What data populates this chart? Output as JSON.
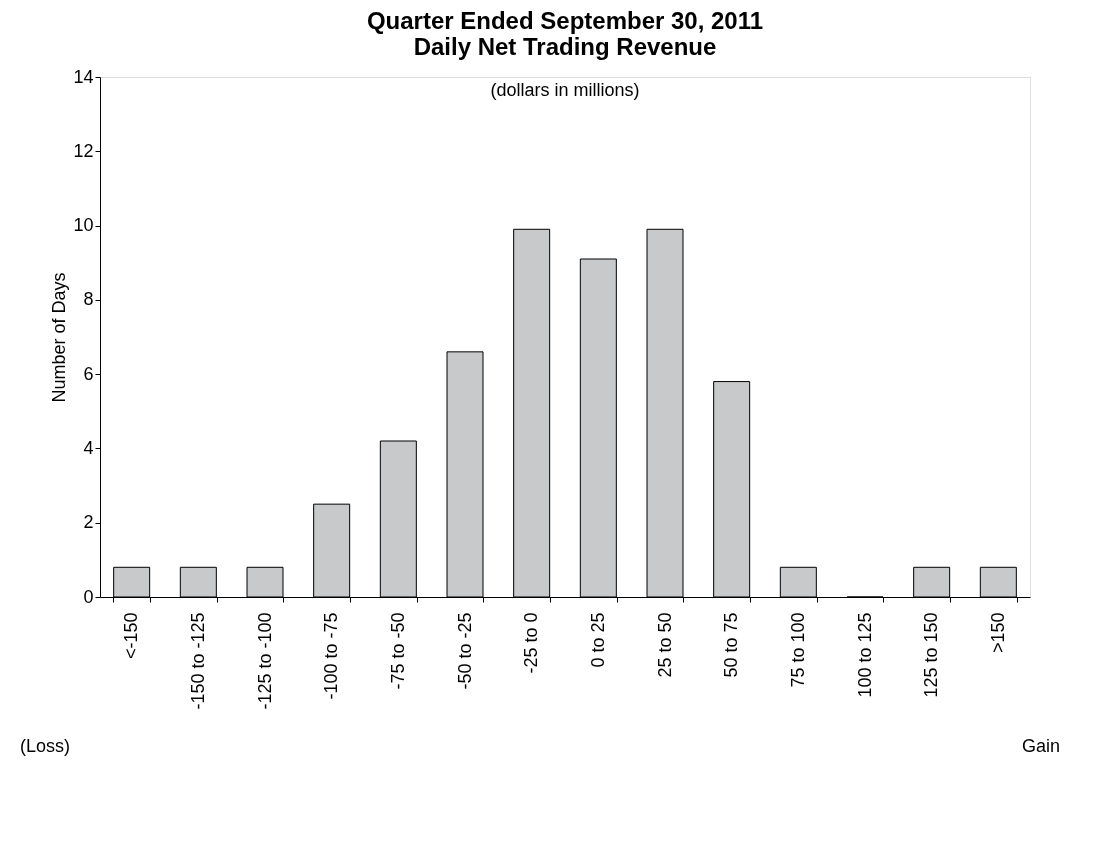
{
  "chart_data": {
    "type": "bar",
    "title": "Quarter Ended September 30, 2011\nDaily Net Trading Revenue",
    "subtitle": "(dollars in millions)",
    "ylabel": "Number of Days",
    "categories": [
      "<-150",
      "-150 to -125",
      "-125 to -100",
      "-100 to -75",
      "-75 to -50",
      "-50 to -25",
      "-25 to 0",
      "0 to 25",
      "25 to 50",
      "50 to 75",
      "75 to 100",
      "100 to 125",
      "125 to 150",
      ">150"
    ],
    "values": [
      0.8,
      0.8,
      0.8,
      2.5,
      4.2,
      6.6,
      9.9,
      9.1,
      9.9,
      5.8,
      0.8,
      0,
      0.8,
      0.8
    ],
    "color": "#c8c9cb",
    "ylim": [
      0,
      14
    ],
    "yticks": [
      0,
      2,
      4,
      6,
      8,
      10,
      12,
      14
    ],
    "grid": false,
    "annotations": [
      "(Loss)",
      "Gain"
    ]
  }
}
